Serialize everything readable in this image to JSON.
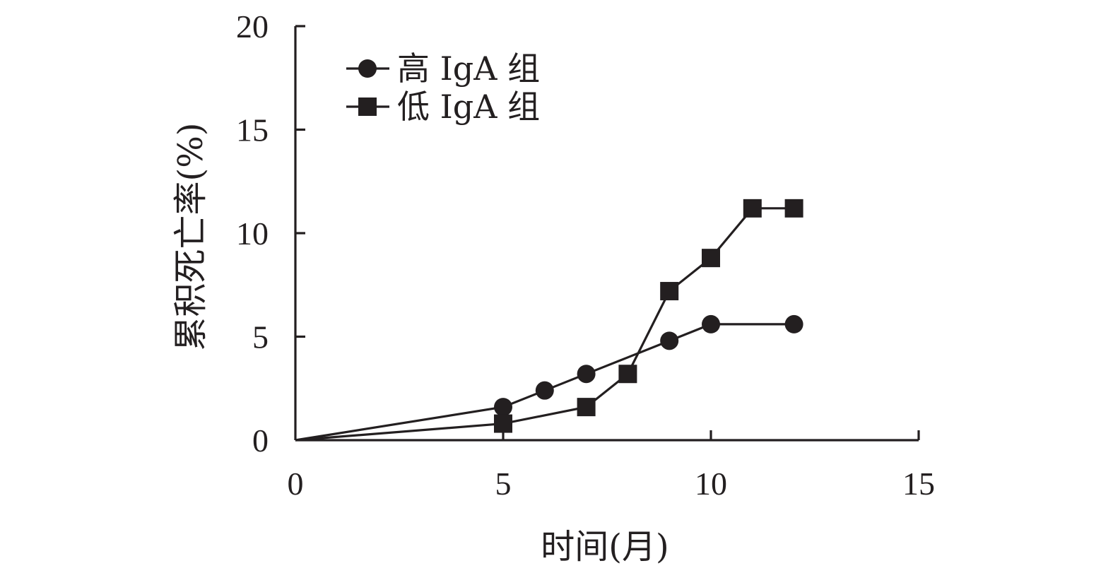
{
  "chart_data": {
    "type": "line",
    "xlabel": "时间(月)",
    "ylabel": "累积死亡率(%)",
    "xlim": [
      0,
      15
    ],
    "ylim": [
      0,
      20
    ],
    "xticks": [
      0,
      5,
      10,
      15
    ],
    "yticks": [
      0,
      5,
      10,
      15,
      20
    ],
    "xtick_labels": [
      "0",
      "5",
      "10",
      "15"
    ],
    "ytick_labels": [
      "0",
      "5",
      "10",
      "15",
      "20"
    ],
    "grid": false,
    "legend_position": "top-left",
    "series": [
      {
        "name": "高 IgA 组",
        "marker": "circle",
        "color": "#231f20",
        "x": [
          0,
          5,
          6,
          7,
          9,
          10,
          12
        ],
        "y": [
          0,
          1.6,
          2.4,
          3.2,
          4.8,
          5.6,
          5.6
        ]
      },
      {
        "name": "低 IgA 组",
        "marker": "square",
        "color": "#231f20",
        "x": [
          0,
          5,
          7,
          8,
          9,
          10,
          11,
          12
        ],
        "y": [
          0,
          0.8,
          1.6,
          3.2,
          7.2,
          8.8,
          11.2,
          11.2
        ]
      }
    ]
  }
}
